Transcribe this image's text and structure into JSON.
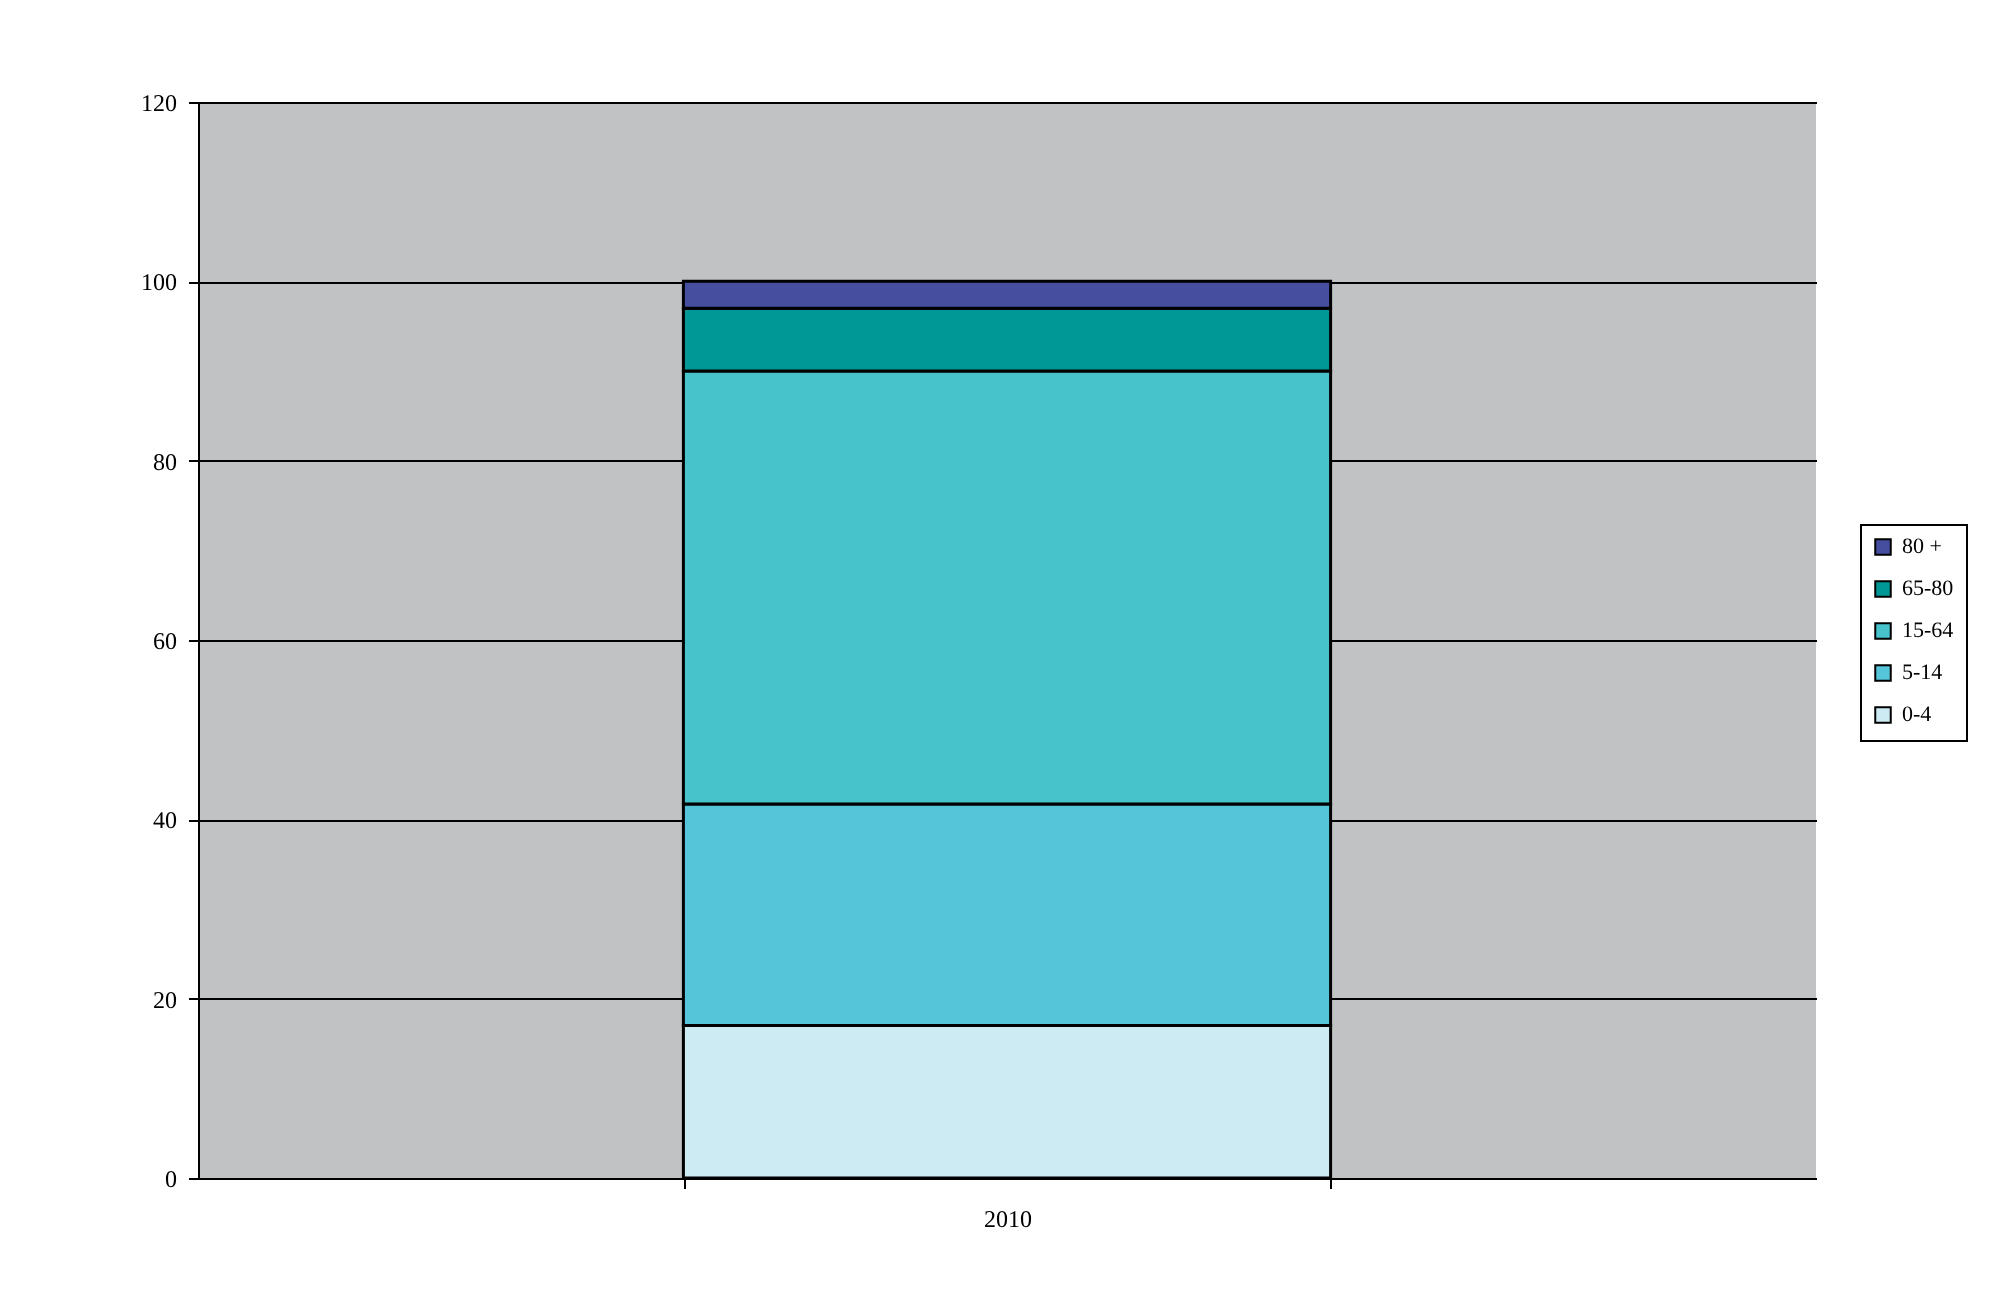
{
  "chart_data": {
    "type": "bar",
    "stacked": true,
    "categories": [
      "2010"
    ],
    "series": [
      {
        "name": "0-4",
        "color": "#cdebf2",
        "values": [
          17
        ]
      },
      {
        "name": "5-14",
        "color": "#55c6da",
        "values": [
          24.7
        ]
      },
      {
        "name": "15-64",
        "color": "#46c3cb",
        "values": [
          48.3
        ]
      },
      {
        "name": "65-80",
        "color": "#009797",
        "values": [
          7
        ]
      },
      {
        "name": "80 +",
        "color": "#464f9f",
        "values": [
          3
        ]
      }
    ],
    "ylim": [
      0,
      120
    ],
    "yticks": [
      0,
      20,
      40,
      60,
      80,
      100,
      120
    ],
    "grid": "y",
    "legend": "right"
  }
}
